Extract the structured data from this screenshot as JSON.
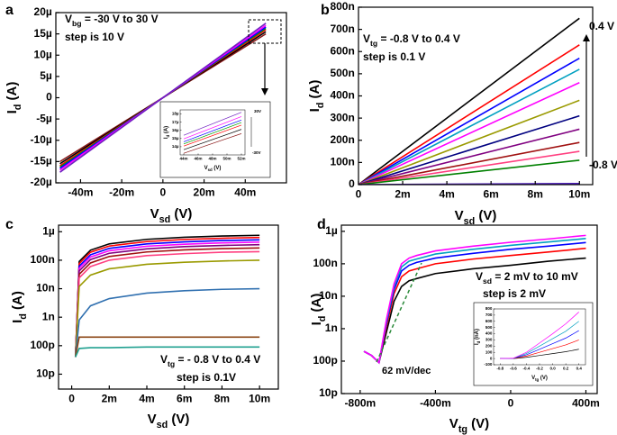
{
  "chart_data": [
    {
      "type": "line",
      "label": "a",
      "x_label": [
        "V",
        "sd",
        " (V)"
      ],
      "y_label": [
        "I",
        "d",
        " (A)"
      ],
      "annotations": [
        [
          "V",
          "bg",
          " = -30 V to 30 V"
        ],
        [
          "step is 10 V"
        ]
      ],
      "xlim": [
        -0.052,
        0.06
      ],
      "xticks": [
        {
          "value": -0.04,
          "label": "-40m"
        },
        {
          "value": -0.02,
          "label": "-20m"
        },
        0,
        {
          "value": 0.02,
          "label": "20m"
        },
        {
          "value": 0.04,
          "label": "40m"
        }
      ],
      "ylim": [
        -2e-05,
        2e-05
      ],
      "yticks": [
        {
          "value": -2e-05,
          "label": "-20µ"
        },
        {
          "value": -1.5e-05,
          "label": "-15µ"
        },
        {
          "value": -1e-05,
          "label": "-10µ"
        },
        {
          "value": -5e-06,
          "label": "-5µ"
        },
        0,
        {
          "value": 5e-06,
          "label": "5µ"
        },
        {
          "value": 1e-05,
          "label": "10µ"
        },
        {
          "value": 1.5e-05,
          "label": "15µ"
        },
        {
          "value": 2e-05,
          "label": "20µ"
        }
      ],
      "log": false,
      "x": [
        -0.05,
        0.05
      ],
      "series": [
        {
          "color": "#8b1a1a",
          "values": [
            -1.5e-05,
            1.5e-05
          ]
        },
        {
          "color": "#000000",
          "values": [
            -1.55e-05,
            1.55e-05
          ]
        },
        {
          "color": "#ff0000",
          "values": [
            -1.6e-05,
            1.6e-05
          ]
        },
        {
          "color": "#00a000",
          "values": [
            -1.63e-05,
            1.63e-05
          ]
        },
        {
          "color": "#0000ff",
          "values": [
            -1.66e-05,
            1.66e-05
          ]
        },
        {
          "color": "#ff00ff",
          "values": [
            -1.7e-05,
            1.7e-05
          ]
        },
        {
          "color": "#7020c0",
          "values": [
            -1.75e-05,
            1.75e-05
          ]
        }
      ]
    },
    {
      "type": "line",
      "x_label": [
        "V",
        "sd",
        " (V)"
      ],
      "y_label": [
        "I",
        "d",
        " (A)"
      ],
      "annotations": [
        [
          "30V"
        ],
        [
          "-30V"
        ]
      ],
      "xlim": [
        0.0435,
        0.0525
      ],
      "xticks": [
        {
          "value": 0.044,
          "label": "44m"
        },
        {
          "value": 0.046,
          "label": "46m"
        },
        {
          "value": 0.048,
          "label": "48m"
        },
        {
          "value": 0.05,
          "label": "50m"
        },
        {
          "value": 0.052,
          "label": "52m"
        }
      ],
      "ylim": [
        1.3e-05,
        1.85e-05
      ],
      "yticks": [
        {
          "value": 1.4e-05,
          "label": "14µ"
        },
        {
          "value": 1.5e-05,
          "label": "15µ"
        },
        {
          "value": 1.6e-05,
          "label": "16µ"
        },
        {
          "value": 1.7e-05,
          "label": "17µ"
        },
        {
          "value": 1.8e-05,
          "label": "18µ"
        }
      ],
      "log": false,
      "x": [
        0.044,
        0.052
      ],
      "series": [
        {
          "color": "#8b1a1a",
          "values": [
            1.32e-05,
            1.56e-05
          ]
        },
        {
          "color": "#000000",
          "values": [
            1.364e-05,
            1.612e-05
          ]
        },
        {
          "color": "#ff0000",
          "values": [
            1.408e-05,
            1.664e-05
          ]
        },
        {
          "color": "#00a000",
          "values": [
            1.434e-05,
            1.695e-05
          ]
        },
        {
          "color": "#0000ff",
          "values": [
            1.46e-05,
            1.726e-05
          ]
        },
        {
          "color": "#ff00ff",
          "values": [
            1.496e-05,
            1.768e-05
          ]
        },
        {
          "color": "#7020c0",
          "values": [
            1.54e-05,
            1.82e-05
          ]
        }
      ]
    },
    {
      "type": "line",
      "label": "b",
      "x_label": [
        "V",
        "sd",
        " (V)"
      ],
      "y_label": [
        "I",
        "d",
        " (A)"
      ],
      "annotations": [
        [
          "V",
          "tg",
          " = -0.8 V to 0.4 V"
        ],
        [
          "step is 0.1 V"
        ],
        [
          "0.4 V"
        ],
        [
          "-0.8 V"
        ]
      ],
      "xlim": [
        0,
        0.0106
      ],
      "xticks": [
        0,
        {
          "value": 0.002,
          "label": "2m"
        },
        {
          "value": 0.004,
          "label": "4m"
        },
        {
          "value": 0.006,
          "label": "6m"
        },
        {
          "value": 0.008,
          "label": "8m"
        },
        {
          "value": 0.01,
          "label": "10m"
        }
      ],
      "ylim": [
        0,
        8e-07
      ],
      "yticks": [
        0,
        {
          "value": 1e-07,
          "label": "100n"
        },
        {
          "value": 2e-07,
          "label": "200n"
        },
        {
          "value": 3e-07,
          "label": "300n"
        },
        {
          "value": 4e-07,
          "label": "400n"
        },
        {
          "value": 5e-07,
          "label": "500n"
        },
        {
          "value": 6e-07,
          "label": "600n"
        },
        {
          "value": 7e-07,
          "label": "700n"
        },
        {
          "value": 8e-07,
          "label": "800n"
        }
      ],
      "log": false,
      "x": [
        0,
        0.01
      ],
      "series": [
        {
          "color": "#000000",
          "values": [
            0,
            7.5e-07
          ]
        },
        {
          "color": "#ff0000",
          "values": [
            0,
            6.3e-07
          ]
        },
        {
          "color": "#0000ff",
          "values": [
            0,
            5.7e-07
          ]
        },
        {
          "color": "#00a0c0",
          "values": [
            0,
            5.2e-07
          ]
        },
        {
          "color": "#ff00ff",
          "values": [
            0,
            4.6e-07
          ]
        },
        {
          "color": "#9a9a00",
          "values": [
            0,
            3.8e-07
          ]
        },
        {
          "color": "#000080",
          "values": [
            0,
            3.1e-07
          ]
        },
        {
          "color": "#800080",
          "values": [
            0,
            2.5e-07
          ]
        },
        {
          "color": "#a01010",
          "values": [
            0,
            1.9e-07
          ]
        },
        {
          "color": "#ff4080",
          "values": [
            0,
            1.5e-07
          ]
        },
        {
          "color": "#008000",
          "values": [
            0,
            1.1e-07
          ]
        },
        {
          "color": "#5020c0",
          "values": [
            0,
            5e-09
          ]
        }
      ]
    },
    {
      "type": "line",
      "label": "c",
      "x_label": [
        "V",
        "sd",
        " (V)"
      ],
      "y_label": [
        "I",
        "d",
        " (A)"
      ],
      "annotations": [
        [
          "V",
          "tg",
          " = - 0.8 V to 0.4 V"
        ],
        [
          "step is 0.1V"
        ]
      ],
      "xlim": [
        -0.0007,
        0.011
      ],
      "xticks": [
        0,
        {
          "value": 0.002,
          "label": "2m"
        },
        {
          "value": 0.004,
          "label": "4m"
        },
        {
          "value": 0.006,
          "label": "6m"
        },
        {
          "value": 0.008,
          "label": "8m"
        },
        {
          "value": 0.01,
          "label": "10m"
        }
      ],
      "ylim": [
        3e-12,
        1.7e-06
      ],
      "yticks": [
        {
          "value": 1e-11,
          "label": "10p"
        },
        {
          "value": 1e-10,
          "label": "100p"
        },
        {
          "value": 1e-09,
          "label": "1n"
        },
        {
          "value": 1e-08,
          "label": "10n"
        },
        {
          "value": 1e-07,
          "label": "100n"
        },
        {
          "value": 1e-06,
          "label": "1µ"
        }
      ],
      "log": true,
      "x": [
        0.0002,
        0.0004,
        0.001,
        0.002,
        0.004,
        0.006,
        0.008,
        0.01
      ],
      "series": [
        {
          "color": "#000000",
          "values": [
            4e-11,
            9e-08,
            2.25e-07,
            3.75e-07,
            5.4e-07,
            6.4e-07,
            7.05e-07,
            7.5e-07
          ]
        },
        {
          "color": "#ff0000",
          "values": [
            4e-11,
            7.6e-08,
            1.9e-07,
            3.15e-07,
            4.5e-07,
            5.35e-07,
            5.9e-07,
            6.3e-07
          ]
        },
        {
          "color": "#0000ff",
          "values": [
            4e-11,
            6.2e-08,
            1.55e-07,
            2.6e-07,
            3.75e-07,
            4.4e-07,
            4.9e-07,
            5.2e-07
          ]
        },
        {
          "color": "#ff00ff",
          "values": [
            4e-11,
            5.2e-08,
            1.3e-07,
            2.15e-07,
            3.1e-07,
            3.65e-07,
            4.05e-07,
            4.3e-07
          ]
        },
        {
          "color": "#800080",
          "values": [
            4e-11,
            4.2e-08,
            1.05e-07,
            1.75e-07,
            2.5e-07,
            3e-07,
            3.3e-07,
            3.5e-07
          ]
        },
        {
          "color": "#a01010",
          "values": [
            4e-11,
            3.2e-08,
            8e-08,
            1.35e-07,
            1.95e-07,
            2.3e-07,
            2.55e-07,
            2.7e-07
          ]
        },
        {
          "color": "#ff4080",
          "values": [
            4e-11,
            2.4e-08,
            6e-08,
            1e-07,
            1.45e-07,
            1.7e-07,
            1.9e-07,
            2e-07
          ]
        },
        {
          "color": "#9a9a00",
          "values": [
            4e-11,
            1.2e-08,
            3e-08,
            5e-08,
            7.2e-08,
            8.5e-08,
            9.4e-08,
            1e-07
          ]
        },
        {
          "color": "#3070b0",
          "values": [
            4e-11,
            8e-10,
            2.5e-09,
            4.5e-09,
            7e-09,
            8.5e-09,
            9.5e-09,
            1e-08
          ]
        },
        {
          "color": "#8b4513",
          "values": [
            4e-11,
            2e-10,
            2e-10,
            2e-10,
            2e-10,
            2e-10,
            2e-10,
            2e-10
          ]
        },
        {
          "color": "#20a090",
          "values": [
            4e-11,
            8e-11,
            8.5e-11,
            8.5e-11,
            9e-11,
            9e-11,
            9e-11,
            9e-11
          ]
        }
      ]
    },
    {
      "type": "line",
      "label": "d",
      "x_label": [
        "V",
        "tg",
        " (V)"
      ],
      "y_label": [
        "I",
        "d",
        " (A)"
      ],
      "annotations": [
        [
          "V",
          "sd",
          " = 2 mV to 10 mV"
        ],
        [
          "step is 2 mV"
        ],
        [
          "62 mV/dec"
        ]
      ],
      "xlim": [
        -0.9,
        0.46
      ],
      "xticks": [
        {
          "value": -0.8,
          "label": "-800m"
        },
        {
          "value": -0.4,
          "label": "-400m"
        },
        0,
        {
          "value": 0.4,
          "label": "400m"
        }
      ],
      "ylim": [
        1e-11,
        1.55e-06
      ],
      "yticks": [
        {
          "value": 1e-11,
          "label": "10p"
        },
        {
          "value": 1e-10,
          "label": "100p"
        },
        {
          "value": 1e-09,
          "label": "1n"
        },
        {
          "value": 1e-08,
          "label": "10n"
        },
        {
          "value": 1e-07,
          "label": "100n"
        },
        {
          "value": 1e-06,
          "label": "1µ"
        }
      ],
      "log": true,
      "x": [
        -0.78,
        -0.74,
        -0.7,
        -0.66,
        -0.62,
        -0.58,
        -0.54,
        -0.5,
        -0.4,
        -0.2,
        0,
        0.2,
        0.4
      ],
      "series": [
        {
          "color": "#000000",
          "values": [
            2e-10,
            1.5e-10,
            9e-11,
            8e-10,
            7e-09,
            2e-08,
            3e-08,
            3.5e-08,
            5e-08,
            7e-08,
            9e-08,
            1.2e-07,
            1.5e-07
          ]
        },
        {
          "color": "#ff0000",
          "values": [
            2e-10,
            1.5e-10,
            9e-11,
            1.2e-09,
            1.2e-08,
            4e-08,
            6e-08,
            7e-08,
            1e-07,
            1.4e-07,
            1.8e-07,
            2.3e-07,
            3e-07
          ]
        },
        {
          "color": "#0000ff",
          "values": [
            2e-10,
            1.5e-10,
            9e-11,
            1.5e-09,
            1.6e-08,
            6e-08,
            9e-08,
            1.1e-07,
            1.5e-07,
            2.1e-07,
            2.8e-07,
            3.5e-07,
            4.5e-07
          ]
        },
        {
          "color": "#00a0c0",
          "values": [
            2e-10,
            1.5e-10,
            9e-11,
            1.7e-09,
            2e-08,
            8e-08,
            1.2e-07,
            1.4e-07,
            2e-07,
            2.8e-07,
            3.7e-07,
            4.7e-07,
            6e-07
          ]
        },
        {
          "color": "#ff00ff",
          "values": [
            2e-10,
            1.5e-10,
            9e-11,
            2e-09,
            2.4e-08,
            1e-07,
            1.5e-07,
            1.8e-07,
            2.5e-07,
            3.5e-07,
            4.6e-07,
            5.8e-07,
            7.5e-07
          ]
        }
      ]
    },
    {
      "type": "line",
      "x_label": [
        "V",
        "tg",
        " (V)"
      ],
      "y_label": [
        "I",
        "d",
        " (nA)"
      ],
      "annotations": [],
      "xlim": [
        -0.9,
        0.5
      ],
      "xticks": [
        -0.8,
        -0.6,
        -0.4,
        -0.2,
        {
          "value": 0,
          "label": "0.0"
        },
        0.2,
        0.4
      ],
      "ylim": [
        -100,
        800
      ],
      "yticks": [
        -100,
        0,
        100,
        200,
        300,
        400,
        500,
        600,
        700,
        800
      ],
      "log": false,
      "x": [
        -0.8,
        -0.6,
        -0.4,
        -0.2,
        0,
        0.2,
        0.4
      ],
      "series": [
        {
          "color": "#000000",
          "values": [
            0,
            0,
            20,
            50,
            80,
            110,
            150
          ]
        },
        {
          "color": "#ff0000",
          "values": [
            0,
            2,
            40,
            100,
            160,
            220,
            300
          ]
        },
        {
          "color": "#0000ff",
          "values": [
            0,
            3,
            60,
            150,
            240,
            330,
            450
          ]
        },
        {
          "color": "#00a0c0",
          "values": [
            0,
            4,
            80,
            200,
            320,
            440,
            600
          ]
        },
        {
          "color": "#ff00ff",
          "values": [
            0,
            5,
            100,
            250,
            400,
            560,
            750
          ]
        }
      ]
    }
  ]
}
